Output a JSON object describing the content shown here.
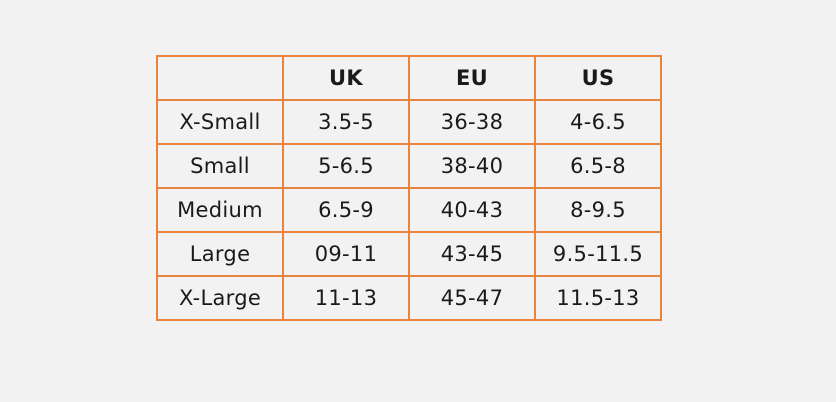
{
  "table": {
    "headers": [
      "",
      "UK",
      "EU",
      "US"
    ],
    "rows": [
      [
        "X-Small",
        "3.5-5",
        "36-38",
        "4-6.5"
      ],
      [
        "Small",
        "5-6.5",
        "38-40",
        "6.5-8"
      ],
      [
        "Medium",
        "6.5-9",
        "40-43",
        "8-9.5"
      ],
      [
        "Large",
        "09-11",
        "43-45",
        "9.5-11.5"
      ],
      [
        "X-Large",
        "11-13",
        "45-47",
        "11.5-13"
      ]
    ]
  },
  "colors": {
    "background": "#f2f2f2",
    "border": "#e8843f",
    "text": "#1a1a1a"
  }
}
